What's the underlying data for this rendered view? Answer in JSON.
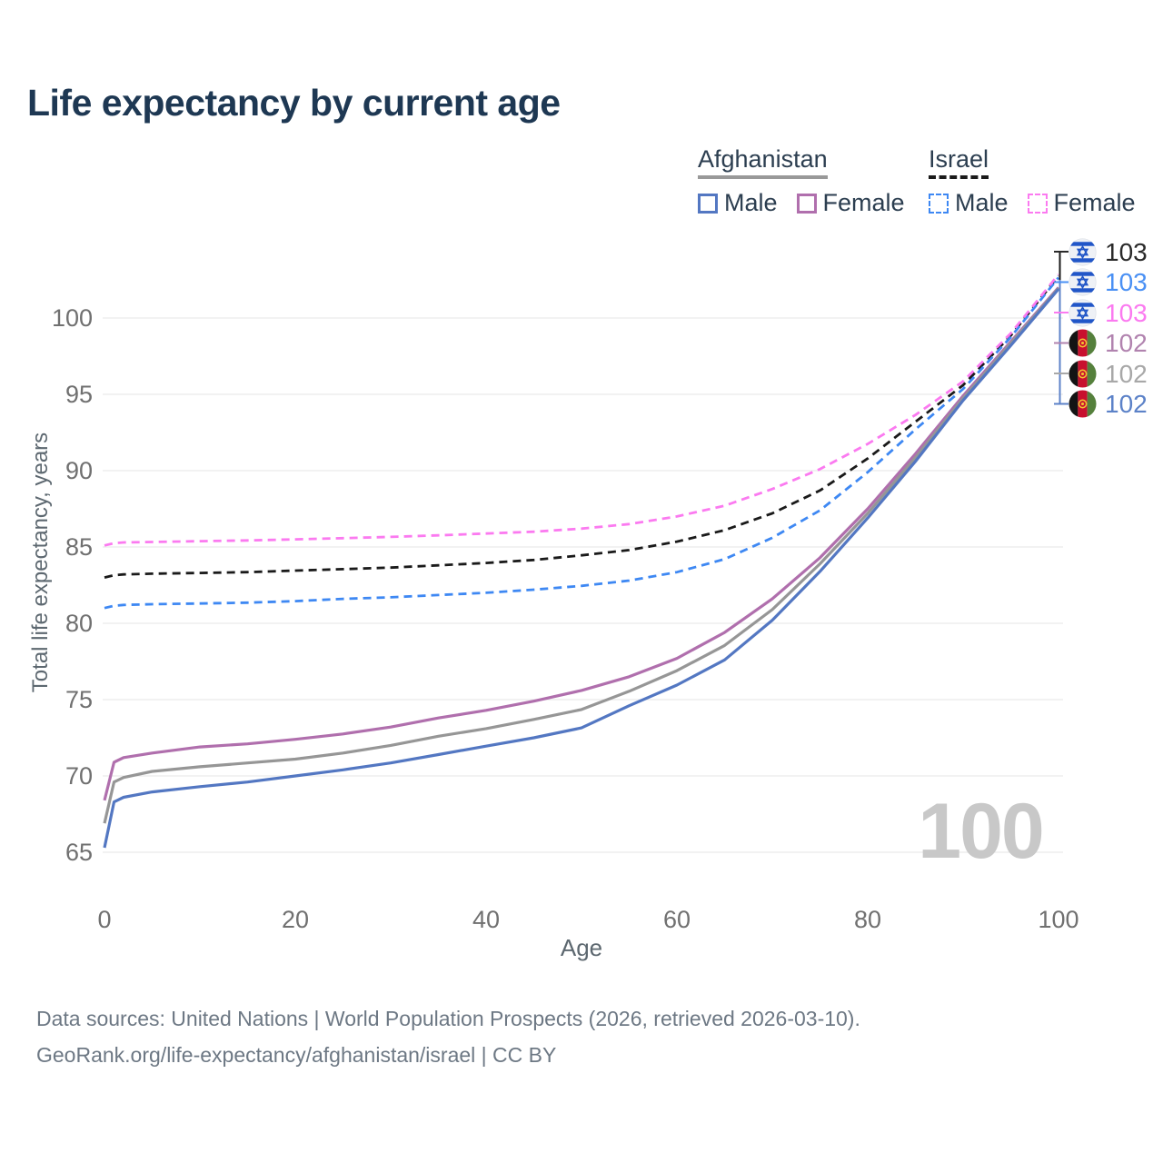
{
  "title": "Life expectancy by current age",
  "watermark": "100",
  "legend": {
    "groups": [
      {
        "label": "Afghanistan",
        "underline_color": "#999999",
        "underline_style": "solid",
        "items": [
          {
            "label": "Male",
            "color": "#5377c2",
            "dashed": false
          },
          {
            "label": "Female",
            "color": "#b06fad",
            "dashed": false
          }
        ]
      },
      {
        "label": "Israel",
        "underline_color": "#1a1a1a",
        "underline_style": "dashed",
        "items": [
          {
            "label": "Male",
            "color": "#3e88f3",
            "dashed": true
          },
          {
            "label": "Female",
            "color": "#fb7af0",
            "dashed": true
          }
        ]
      }
    ]
  },
  "chart_data": {
    "type": "line",
    "title": "Life expectancy by current age",
    "xlabel": "Age",
    "ylabel": "Total life expectancy, years",
    "x_ticks": [
      0,
      20,
      40,
      60,
      80,
      100
    ],
    "y_ticks": [
      65,
      70,
      75,
      80,
      85,
      90,
      95,
      100
    ],
    "xlim": [
      0,
      100
    ],
    "ylim": [
      63.5,
      104.5
    ],
    "grid": "horizontal",
    "legend_position": "top-right",
    "x": [
      0,
      1,
      2,
      5,
      10,
      15,
      20,
      25,
      30,
      35,
      40,
      45,
      50,
      55,
      60,
      65,
      70,
      75,
      80,
      85,
      90,
      95,
      100
    ],
    "series": [
      {
        "name": "Afghanistan Female",
        "color": "#b06fad",
        "dashed": false,
        "end_value": 102,
        "values": [
          68.4,
          70.9,
          71.2,
          71.5,
          71.9,
          72.1,
          72.4,
          72.75,
          73.2,
          73.8,
          74.3,
          74.9,
          75.6,
          76.5,
          77.7,
          79.4,
          81.6,
          84.3,
          87.5,
          91.1,
          94.9,
          98.45,
          102.0
        ]
      },
      {
        "name": "Afghanistan Total",
        "color": "#969696",
        "dashed": false,
        "end_value": 102,
        "values": [
          66.9,
          69.6,
          69.9,
          70.3,
          70.6,
          70.85,
          71.1,
          71.5,
          72.0,
          72.6,
          73.1,
          73.7,
          74.35,
          75.55,
          76.9,
          78.55,
          80.9,
          83.9,
          87.2,
          90.85,
          94.75,
          98.35,
          101.95
        ]
      },
      {
        "name": "Afghanistan Male",
        "color": "#5377c2",
        "dashed": false,
        "end_value": 102,
        "values": [
          65.3,
          68.3,
          68.6,
          68.95,
          69.3,
          69.6,
          70.0,
          70.4,
          70.85,
          71.4,
          71.95,
          72.5,
          73.15,
          74.6,
          75.95,
          77.6,
          80.2,
          83.4,
          86.9,
          90.6,
          94.6,
          98.2,
          101.9
        ]
      },
      {
        "name": "Israel Total",
        "color": "#1a1a1a",
        "dashed": true,
        "end_value": 103,
        "values": [
          83.0,
          83.15,
          83.2,
          83.25,
          83.3,
          83.35,
          83.45,
          83.55,
          83.65,
          83.8,
          83.95,
          84.15,
          84.45,
          84.8,
          85.35,
          86.1,
          87.2,
          88.7,
          90.8,
          93.2,
          95.6,
          98.85,
          102.75
        ]
      },
      {
        "name": "Israel Male",
        "color": "#3e88f3",
        "dashed": true,
        "end_value": 103,
        "values": [
          81.0,
          81.15,
          81.2,
          81.25,
          81.3,
          81.35,
          81.45,
          81.6,
          81.7,
          81.85,
          82.0,
          82.2,
          82.45,
          82.8,
          83.35,
          84.2,
          85.6,
          87.4,
          89.9,
          92.7,
          95.35,
          98.75,
          102.65
        ]
      },
      {
        "name": "Israel Female",
        "color": "#fb7af0",
        "dashed": true,
        "end_value": 103,
        "values": [
          85.1,
          85.25,
          85.3,
          85.33,
          85.38,
          85.43,
          85.5,
          85.58,
          85.66,
          85.76,
          85.88,
          86.0,
          86.2,
          86.5,
          87.0,
          87.7,
          88.8,
          90.1,
          91.75,
          93.65,
          95.85,
          99.0,
          102.85
        ]
      }
    ]
  },
  "end_labels": [
    {
      "value": "103",
      "color": "#2a2a2a",
      "flag": "israel",
      "series": "Israel Total"
    },
    {
      "value": "103",
      "color": "#4a90f4",
      "flag": "israel",
      "series": "Israel Male"
    },
    {
      "value": "103",
      "color": "#fb7af0",
      "flag": "israel",
      "series": "Israel Female"
    },
    {
      "value": "102",
      "color": "#b183af",
      "flag": "afghanistan",
      "series": "Afghanistan Female"
    },
    {
      "value": "102",
      "color": "#a8a8a8",
      "flag": "afghanistan",
      "series": "Afghanistan Total"
    },
    {
      "value": "102",
      "color": "#5c82c8",
      "flag": "afghanistan",
      "series": "Afghanistan Male"
    }
  ],
  "footer": {
    "line1": "Data sources: United Nations | World Population Prospects (2026, retrieved 2026-03-10).",
    "line2": "GeoRank.org/life-expectancy/afghanistan/israel | CC BY"
  }
}
